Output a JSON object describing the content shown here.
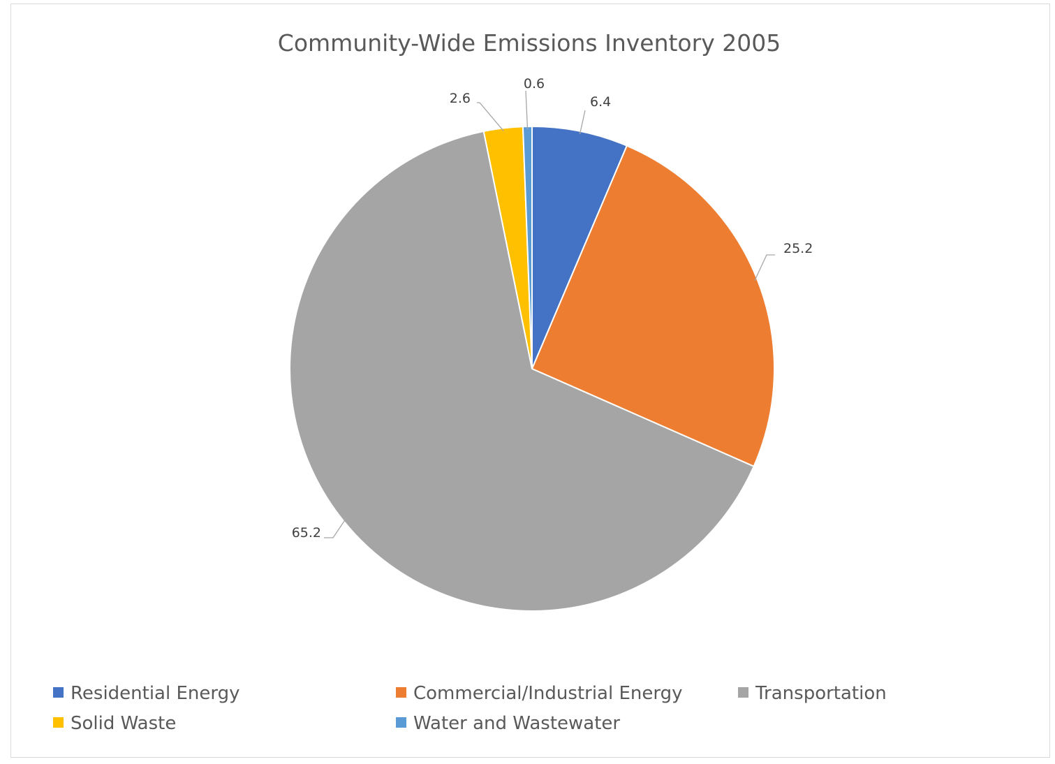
{
  "chart_data": {
    "type": "pie",
    "title": "Community-Wide Emissions Inventory 2005",
    "categories": [
      "Residential Energy",
      "Commercial/Industrial Energy",
      "Transportation",
      "Solid Waste",
      "Water and Wastewater"
    ],
    "values": [
      6.4,
      25.2,
      65.2,
      2.6,
      0.6
    ],
    "data_labels": [
      "6.4",
      "25.2",
      "65.2",
      "2.6",
      "0.6"
    ],
    "colors": [
      "#4472c4",
      "#ed7d31",
      "#a5a5a5",
      "#ffc000",
      "#5b9bd5"
    ],
    "legend_position": "bottom",
    "start_angle": "12 o'clock, clockwise"
  }
}
